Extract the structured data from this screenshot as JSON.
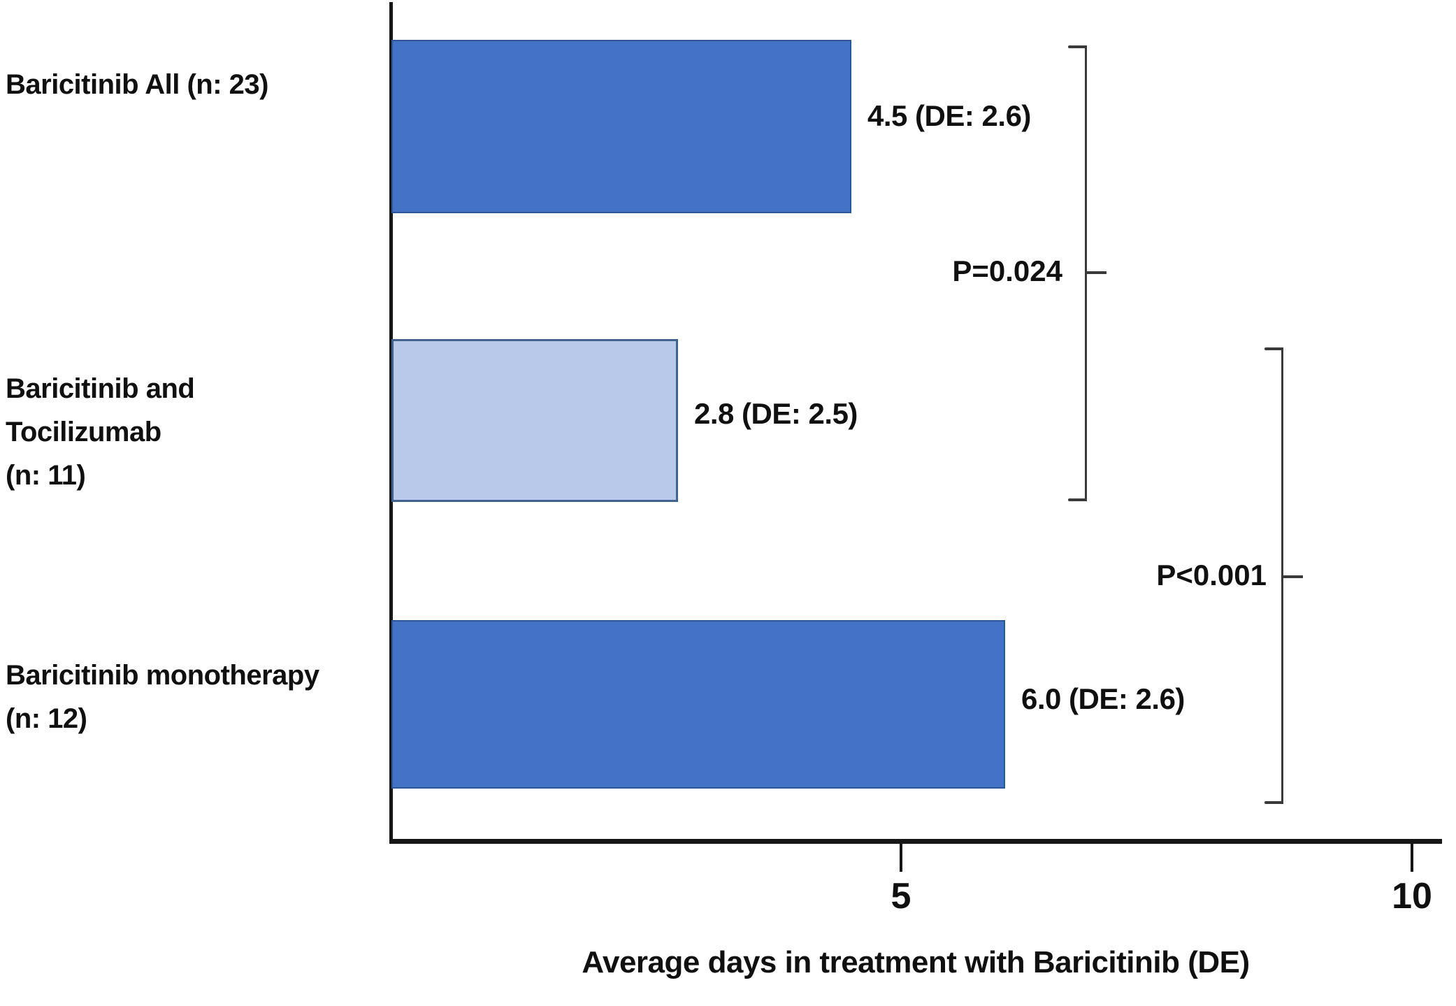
{
  "chart_data": {
    "type": "bar",
    "orientation": "horizontal",
    "title": "",
    "xlabel": "Average days in treatment with Baricitinib (DE)",
    "ylabel": "",
    "xlim": [
      0,
      10
    ],
    "xticks": [
      5,
      10
    ],
    "grid": false,
    "legend": false,
    "categories": [
      "Baricitinib All (n: 23)",
      "Baricitinib and Tocilizumab (n: 11)",
      "Baricitinib monotherapy (n: 12)"
    ],
    "category_lines": [
      [
        "Baricitinib All (n: 23)",
        ""
      ],
      [
        "Baricitinib and Tocilizumab",
        "(n: 11)"
      ],
      [
        "Baricitinib monotherapy",
        "(n: 12)"
      ]
    ],
    "values": [
      4.5,
      2.8,
      6.0
    ],
    "value_labels": [
      "4.5 (DE: 2.6)",
      "2.8 (DE: 2.5)",
      "6.0 (DE: 2.6)"
    ],
    "bar_colors": [
      "#4472c4",
      "#b9c9e9",
      "#4472c4"
    ],
    "bar_border_colors": [
      "#2e5597",
      "#41618e",
      "#2e5597"
    ],
    "annotations": [
      {
        "label": "P=0.024",
        "between": [
          "Baricitinib All (n: 23)",
          "Baricitinib and Tocilizumab (n: 11)"
        ]
      },
      {
        "label": "P<0.001",
        "between": [
          "Baricitinib and Tocilizumab (n: 11)",
          "Baricitinib monotherapy (n: 12)"
        ]
      }
    ],
    "colors": {
      "axis": "#161616",
      "bracket": "#3a3a3a",
      "text": "#101010",
      "background": "#ffffff"
    }
  }
}
